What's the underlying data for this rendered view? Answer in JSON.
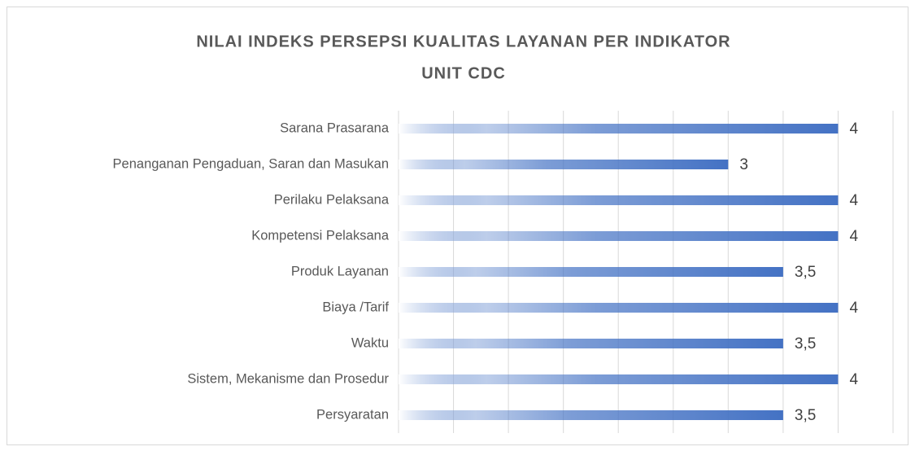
{
  "chart_data": {
    "type": "bar",
    "orientation": "horizontal",
    "title": [
      "NILAI INDEKS PERSEPSI KUALITAS LAYANAN PER INDIKATOR",
      "UNIT CDC"
    ],
    "categories": [
      "Sarana Prasarana",
      "Penanganan Pengaduan, Saran dan Masukan",
      "Perilaku Pelaksana",
      "Kompetensi Pelaksana",
      "Produk Layanan",
      "Biaya /Tarif",
      "Waktu",
      "Sistem, Mekanisme dan Prosedur",
      "Persyaratan"
    ],
    "values": [
      4,
      3,
      4,
      4,
      3.5,
      4,
      3.5,
      4,
      3.5
    ],
    "value_labels": [
      "4",
      "3",
      "4",
      "4",
      "3,5",
      "4",
      "3,5",
      "4",
      "3,5"
    ],
    "color": "#4472c4",
    "xlim": [
      0,
      4.5
    ],
    "xticks": [
      0,
      0.5,
      1,
      1.5,
      2,
      2.5,
      3,
      3.5,
      4,
      4.5
    ],
    "grid": true
  }
}
